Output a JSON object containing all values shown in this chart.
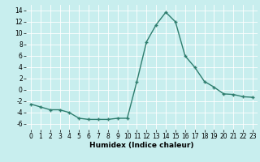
{
  "x": [
    0,
    1,
    2,
    3,
    4,
    5,
    6,
    7,
    8,
    9,
    10,
    11,
    12,
    13,
    14,
    15,
    16,
    17,
    18,
    19,
    20,
    21,
    22,
    23
  ],
  "y": [
    -2.5,
    -3.0,
    -3.5,
    -3.5,
    -4.0,
    -5.0,
    -5.2,
    -5.2,
    -5.2,
    -5.0,
    -5.0,
    1.5,
    8.5,
    11.5,
    13.7,
    12.0,
    6.0,
    4.0,
    1.5,
    0.5,
    -0.7,
    -0.8,
    -1.2,
    -1.3
  ],
  "line_color": "#2e7d6e",
  "marker": "+",
  "marker_size": 3,
  "linewidth": 1.0,
  "xlabel": "Humidex (Indice chaleur)",
  "xlabel_fontsize": 6.5,
  "bg_color": "#c8eeee",
  "grid_color": "#ffffff",
  "tick_fontsize": 5.5,
  "ylim": [
    -7,
    15
  ],
  "xlim": [
    -0.5,
    23.5
  ],
  "yticks": [
    -6,
    -4,
    -2,
    0,
    2,
    4,
    6,
    8,
    10,
    12,
    14
  ],
  "xticks": [
    0,
    1,
    2,
    3,
    4,
    5,
    6,
    7,
    8,
    9,
    10,
    11,
    12,
    13,
    14,
    15,
    16,
    17,
    18,
    19,
    20,
    21,
    22,
    23
  ]
}
